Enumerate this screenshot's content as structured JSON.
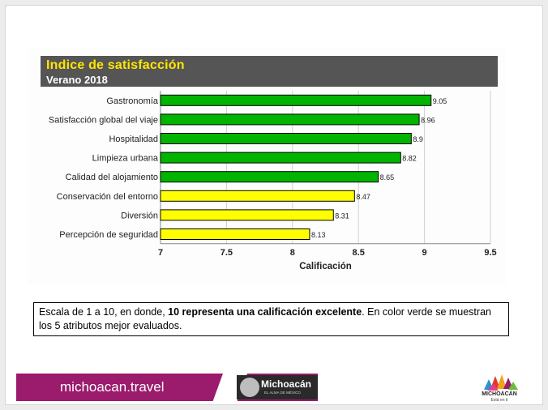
{
  "chart_data": {
    "type": "bar",
    "orientation": "horizontal",
    "title": "Indice de satisfacción",
    "subtitle": "Verano 2018",
    "xlabel": "Calificación",
    "ylabel": "",
    "xlim": [
      7,
      9.5
    ],
    "xticks": [
      "7",
      "7.5",
      "8",
      "8.5",
      "9",
      "9.5"
    ],
    "grid": "vertical",
    "categories": [
      "Gastronomía",
      "Satisfacción global del viaje",
      "Hospitalidad",
      "Limpieza urbana",
      "Calidad del alojamiento",
      "Conservación del entorno",
      "Diversión",
      "Percepción de seguridad"
    ],
    "values": [
      9.05,
      8.96,
      8.9,
      8.82,
      8.65,
      8.47,
      8.31,
      8.13
    ],
    "value_labels": [
      "9.05",
      "8.96",
      "8.9",
      "8.82",
      "8.65",
      "8.47",
      "8.31",
      "8.13"
    ],
    "bar_colors": [
      "#00b400",
      "#00b400",
      "#00b400",
      "#00b400",
      "#00b400",
      "#ffff00",
      "#ffff00",
      "#ffff00"
    ]
  },
  "note": {
    "prefix": "Escala de 1 a 10, en donde, ",
    "bold": "10 representa una calificación excelente",
    "suffix": ". En color verde se muestran los 5 atributos mejor evaluados."
  },
  "footer": {
    "site": "michoacan.travel",
    "brand_name": "Michoacán",
    "brand_tagline": "EL ALMA DE MÉXICO",
    "logo_name": "MICHOACÁN",
    "logo_tagline": "Está en ti"
  },
  "colors": {
    "title_bar": "#555555",
    "title_text": "#ffe600",
    "footer_bar": "#9b1b6d"
  }
}
